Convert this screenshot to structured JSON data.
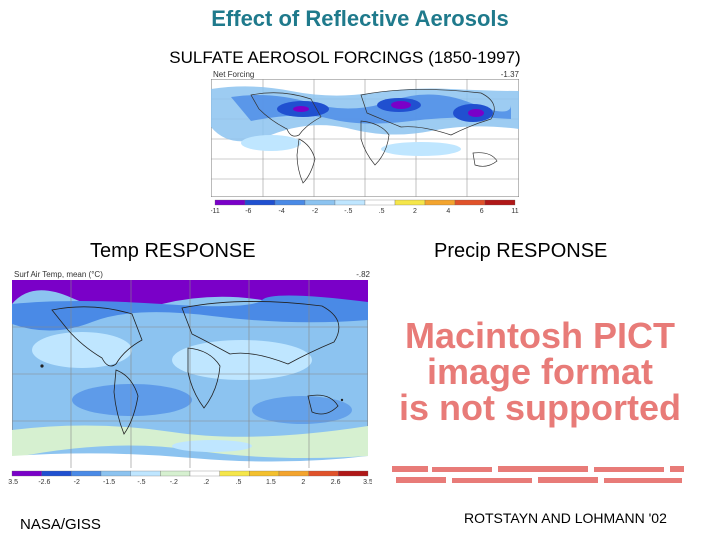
{
  "slide": {
    "title": "Effect of Reflective Aerosols",
    "subtitle": "SULFATE AEROSOL FORCINGS (1850-1997)",
    "temp_label": "Temp RESPONSE",
    "precip_label": "Precip RESPONSE",
    "credit_left": "NASA/GISS",
    "credit_right": "ROTSTAYN AND LOHMANN '02"
  },
  "forcing_map": {
    "header_left": "Net Forcing",
    "header_right": "-1.37",
    "colorbar_ticks": [
      "-11",
      "-6",
      "-4",
      "-2",
      "-.5",
      ".5",
      "2",
      "4",
      "6",
      "11"
    ],
    "colorbar_colors": [
      "#7a00c8",
      "#2050d0",
      "#4a8ae6",
      "#8cc3f0",
      "#bfe6ff",
      "#ffffff",
      "#f5e64a",
      "#f3a42e",
      "#e0522a",
      "#b01818"
    ]
  },
  "temp_map": {
    "header_left": "Surf Air Temp, mean (°C)",
    "header_right": "-.82",
    "colorbar_ticks": [
      "-3.5",
      "-2.6",
      "-2",
      "-1.5",
      "-.5",
      "-.2",
      ".2",
      ".5",
      "1.5",
      "2",
      "2.6",
      "3.5"
    ],
    "colorbar_colors": [
      "#7a00c8",
      "#2050d0",
      "#4a8ae6",
      "#8cc3f0",
      "#bfe6ff",
      "#d6f0d0",
      "#ffffff",
      "#f5e64a",
      "#f3c02e",
      "#f3a42e",
      "#e0522a",
      "#b01818"
    ]
  },
  "precip_placeholder": {
    "line1": "Macintosh PICT",
    "line2": "image format",
    "line3": "is not supported"
  },
  "colors": {
    "title": "#1f7a8c",
    "placeholder_text": "#e87b78",
    "ocean_blue": "#8cc3f0",
    "land_green": "#d6f0d0"
  }
}
